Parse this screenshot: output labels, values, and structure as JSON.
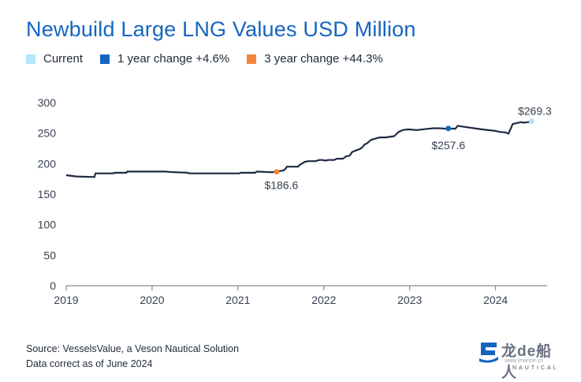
{
  "chart_data": {
    "type": "line",
    "title": "Newbuild Large LNG Values USD Million",
    "legend": [
      {
        "label": "Current",
        "color": "#b3e5fc"
      },
      {
        "label": "1 year change +4.6%",
        "color": "#1565c0"
      },
      {
        "label": "3 year change +44.3%",
        "color": "#f4873b"
      }
    ],
    "legend_position": "top-left",
    "xlabel": "",
    "ylabel": "",
    "x_ticks": [
      "2019",
      "2020",
      "2021",
      "2022",
      "2023",
      "2024"
    ],
    "y_ticks": [
      "0",
      "50",
      "100",
      "150",
      "200",
      "250",
      "300"
    ],
    "xlim": [
      2019.0,
      2024.6
    ],
    "ylim": [
      0,
      300
    ],
    "grid": false,
    "line_color": "#1e2a44",
    "series": [
      {
        "x": [
          2019.0,
          2019.12,
          2019.33,
          2019.34,
          2019.55,
          2019.56,
          2019.7,
          2019.71,
          2019.88,
          2019.89,
          2020.15,
          2020.25,
          2020.26,
          2020.42,
          2020.43,
          2020.7,
          2020.9,
          2021.02,
          2021.03,
          2021.2,
          2021.22,
          2021.38,
          2021.45,
          2021.53,
          2021.55,
          2021.57,
          2021.7,
          2021.72,
          2021.78,
          2021.82,
          2021.9,
          2021.95,
          2021.98,
          2022.02,
          2022.05,
          2022.12,
          2022.15,
          2022.22,
          2022.26,
          2022.3,
          2022.33,
          2022.38,
          2022.42,
          2022.45,
          2022.47,
          2022.5,
          2022.55,
          2022.6,
          2022.65,
          2022.72,
          2022.82,
          2022.87,
          2022.92,
          2022.97,
          2023.0,
          2023.08,
          2023.2,
          2023.28,
          2023.35,
          2023.45,
          2023.5,
          2023.53,
          2023.56,
          2023.65,
          2023.75,
          2023.85,
          2023.98,
          2024.05,
          2024.12,
          2024.15,
          2024.2,
          2024.3,
          2024.32,
          2024.38,
          2024.42
        ],
        "y": [
          181,
          179,
          178,
          184,
          184,
          185,
          185,
          187,
          187,
          187,
          187,
          186,
          186,
          185,
          184,
          184,
          184,
          184,
          185,
          185,
          187,
          186,
          186.6,
          189,
          191,
          195,
          195,
          198,
          203,
          204,
          204,
          206,
          206,
          205,
          206,
          206,
          208,
          208,
          212,
          213,
          219,
          222,
          224,
          227,
          231,
          233,
          239,
          241,
          243,
          243,
          245,
          252,
          255,
          256,
          256,
          255,
          257,
          258,
          258,
          257,
          257.6,
          257,
          262,
          260,
          258,
          256,
          254,
          252,
          251,
          249,
          265,
          268,
          267,
          268,
          269.3
        ]
      }
    ],
    "markers": [
      {
        "x": 2021.45,
        "y": 186.6,
        "label": "$186.6",
        "color": "#f4873b"
      },
      {
        "x": 2023.45,
        "y": 257.6,
        "label": "$257.6",
        "color": "#1565c0"
      },
      {
        "x": 2024.42,
        "y": 269.3,
        "label": "$269.3",
        "color": "#b3e5fc"
      }
    ]
  },
  "footer": {
    "source": "Source: VesselsValue, a Veson Nautical Solution",
    "note": "Data correct as of June 2024"
  },
  "logo": {
    "brand": "龙de船人",
    "url": "www.imarine.cn",
    "sub": "NAUTICAL"
  }
}
